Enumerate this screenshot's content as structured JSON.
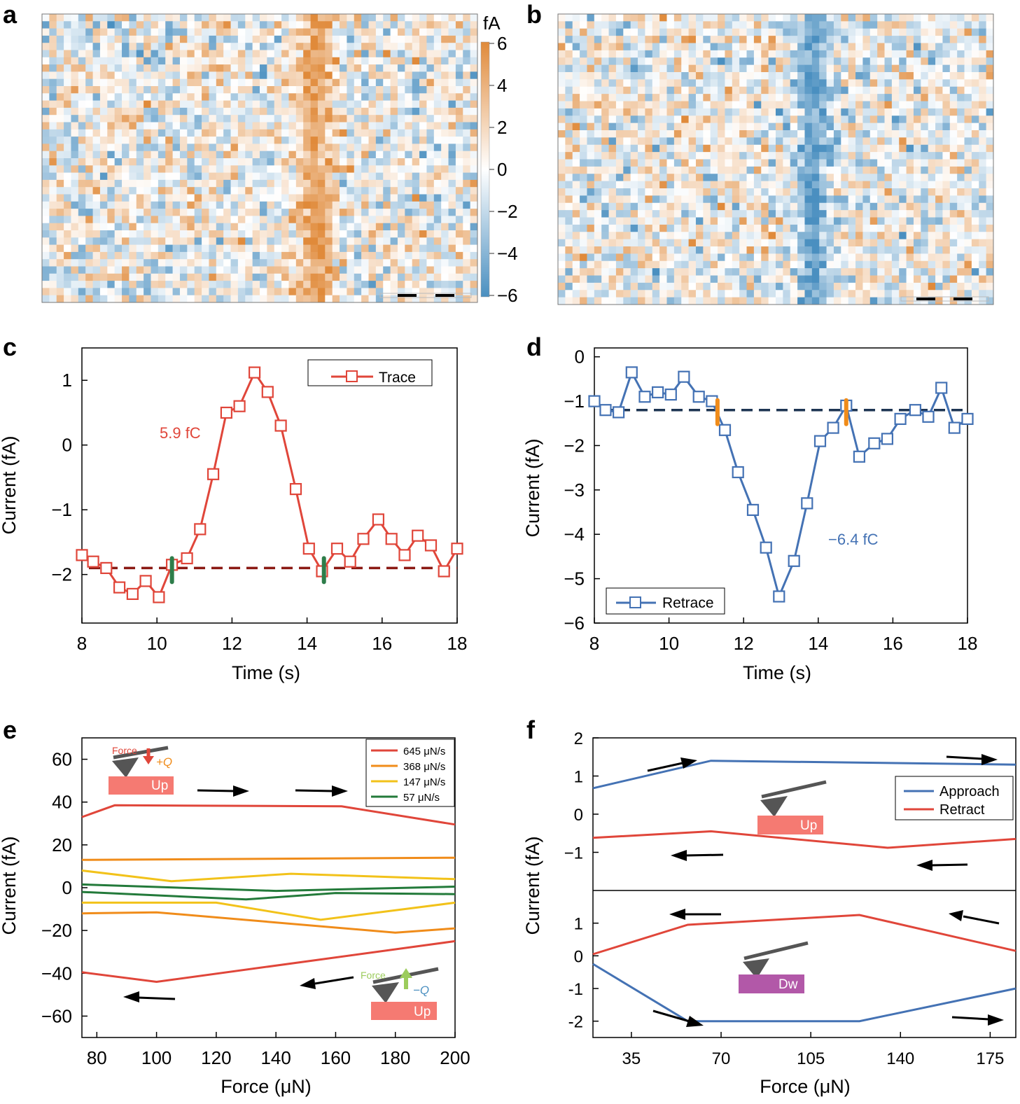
{
  "panel_letters": [
    "a",
    "b",
    "c",
    "d",
    "e",
    "f"
  ],
  "colorbar": {
    "unit": "fA",
    "ticks": [
      "6",
      "4",
      "2",
      "0",
      "−2",
      "−4",
      "−6"
    ],
    "range": [
      -6,
      6
    ],
    "positive_color": "#e08a3a",
    "negative_color": "#4a8fc0"
  },
  "chart_data": [
    {
      "id": "a",
      "type": "heatmap",
      "unit": "fA",
      "range": [
        -6,
        6
      ],
      "description_band": "positive band centered near column 0.62 of the map"
    },
    {
      "id": "b",
      "type": "heatmap",
      "unit": "fA",
      "range": [
        -6,
        6
      ],
      "description_band": "negative band centered near column 0.58 of the map"
    },
    {
      "id": "c",
      "type": "line",
      "color": "#e0463a",
      "xlabel": "Time (s)",
      "ylabel": "Current (fA)",
      "xlim": [
        8,
        18
      ],
      "ylim": [
        -2.75,
        1.5
      ],
      "xticks": [
        8,
        10,
        12,
        14,
        16,
        18
      ],
      "yticks": [
        1,
        0,
        -1,
        -2
      ],
      "ytick_labels": [
        "1",
        "0",
        "−1",
        "−2"
      ],
      "legend": "Trace",
      "annotation": "5.9 fC",
      "baseline": -1.9,
      "baseline_color": "#8b1a14",
      "markers_at": [
        10.4,
        14.45
      ],
      "marker_color": "#2e7d4a",
      "series": [
        {
          "name": "Trace",
          "x": [
            8.0,
            8.3,
            8.65,
            9.0,
            9.35,
            9.7,
            10.05,
            10.4,
            10.8,
            11.15,
            11.5,
            11.85,
            12.2,
            12.6,
            12.95,
            13.3,
            13.7,
            14.05,
            14.4,
            14.8,
            15.15,
            15.5,
            15.9,
            16.25,
            16.6,
            16.95,
            17.3,
            17.65,
            18.0
          ],
          "y": [
            -1.7,
            -1.8,
            -1.9,
            -2.2,
            -2.3,
            -2.1,
            -2.35,
            -1.85,
            -1.75,
            -1.3,
            -0.45,
            0.5,
            0.6,
            1.12,
            0.82,
            0.3,
            -0.68,
            -1.6,
            -1.95,
            -1.6,
            -1.8,
            -1.45,
            -1.15,
            -1.45,
            -1.7,
            -1.4,
            -1.55,
            -1.95,
            -1.6
          ]
        }
      ]
    },
    {
      "id": "d",
      "type": "line",
      "color": "#4472b4",
      "xlabel": "Time (s)",
      "ylabel": "Current (fA)",
      "xlim": [
        8,
        18
      ],
      "ylim": [
        -6,
        0.2
      ],
      "xticks": [
        8,
        10,
        12,
        14,
        16,
        18
      ],
      "yticks": [
        0,
        -1,
        -2,
        -3,
        -4,
        -5,
        -6
      ],
      "ytick_labels": [
        "0",
        "−1",
        "−2",
        "−3",
        "−4",
        "−5",
        "−6"
      ],
      "legend": "Retrace",
      "annotation": "−6.4 fC",
      "baseline": -1.2,
      "baseline_color": "#1e3553",
      "markers_at": [
        11.3,
        14.75
      ],
      "marker_color": "#f08c1a",
      "series": [
        {
          "name": "Retrace",
          "x": [
            8.0,
            8.3,
            8.65,
            9.0,
            9.35,
            9.7,
            10.05,
            10.4,
            10.8,
            11.15,
            11.5,
            11.85,
            12.25,
            12.6,
            12.95,
            13.35,
            13.7,
            14.05,
            14.4,
            14.75,
            15.1,
            15.5,
            15.85,
            16.2,
            16.6,
            16.95,
            17.3,
            17.65,
            18.0
          ],
          "y": [
            -1.0,
            -1.2,
            -1.25,
            -0.35,
            -0.9,
            -0.8,
            -0.85,
            -0.45,
            -0.9,
            -1.0,
            -1.65,
            -2.6,
            -3.45,
            -4.3,
            -5.4,
            -4.6,
            -3.3,
            -1.9,
            -1.6,
            -1.1,
            -2.25,
            -1.95,
            -1.85,
            -1.4,
            -1.2,
            -1.35,
            -0.7,
            -1.6,
            -1.4
          ]
        }
      ]
    },
    {
      "id": "e",
      "type": "line",
      "xlabel": "Force (μN)",
      "ylabel": "Current (fA)",
      "xlim": [
        75,
        200
      ],
      "ylim": [
        -70,
        70
      ],
      "xticks": [
        80,
        100,
        120,
        140,
        160,
        180,
        200
      ],
      "yticks": [
        60,
        40,
        20,
        0,
        -20,
        -40,
        -60
      ],
      "ytick_labels": [
        "60",
        "40",
        "20",
        "0",
        "−20",
        "−40",
        "−60"
      ],
      "legend": [
        "645 μN/s",
        "368 μN/s",
        "147 μN/s",
        "57 μN/s"
      ],
      "series": [
        {
          "name": "645 μN/s",
          "color": "#e0463a",
          "x": [
            75,
            86,
            162,
            200
          ],
          "y": [
            33,
            38.5,
            38,
            29.5
          ]
        },
        {
          "name": "645 μN/s",
          "color": "#e0463a",
          "x": [
            75,
            100,
            200
          ],
          "y": [
            -39.5,
            -44,
            -25
          ]
        },
        {
          "name": "368 μN/s",
          "color": "#f08c1a",
          "x": [
            75,
            200
          ],
          "y": [
            13,
            14
          ]
        },
        {
          "name": "368 μN/s",
          "color": "#f08c1a",
          "x": [
            75,
            100,
            180,
            200
          ],
          "y": [
            -12,
            -11.5,
            -21,
            -19
          ]
        },
        {
          "name": "147 μN/s",
          "color": "#f2c21a",
          "x": [
            75,
            105,
            145,
            200
          ],
          "y": [
            8,
            3,
            6.5,
            4
          ]
        },
        {
          "name": "147 μN/s",
          "color": "#f2c21a",
          "x": [
            75,
            120,
            155,
            200
          ],
          "y": [
            -7,
            -7,
            -15,
            -7
          ]
        },
        {
          "name": "57 μN/s",
          "color": "#237a3a",
          "x": [
            75,
            140,
            200
          ],
          "y": [
            1.5,
            -1.5,
            0.5
          ]
        },
        {
          "name": "57 μN/s",
          "color": "#237a3a",
          "x": [
            75,
            130,
            160,
            200
          ],
          "y": [
            -2,
            -5.5,
            -2.5,
            -3
          ]
        }
      ],
      "insets": {
        "top_label": "Force",
        "top_charge": "+Q",
        "top_box": "Up",
        "bottom_label": "Force",
        "bottom_charge": "−Q",
        "bottom_box": "Up"
      }
    },
    {
      "id": "f",
      "type": "line",
      "xlabel": "Force (μN)",
      "ylabel": "Current (fA)",
      "xlim": [
        20,
        185
      ],
      "xticks": [
        35,
        70,
        105,
        140,
        175
      ],
      "legend": [
        "Approach",
        "Retract"
      ],
      "top": {
        "ylim": [
          -2,
          2
        ],
        "yticks": [
          2,
          1,
          0,
          -1
        ],
        "ytick_labels": [
          "2",
          "1",
          "0",
          "−1"
        ],
        "box": "Up",
        "series": [
          {
            "name": "Approach",
            "color": "#4472b4",
            "x": [
              20,
              66,
              185
            ],
            "y": [
              0.68,
              1.4,
              1.3
            ]
          },
          {
            "name": "Retract",
            "color": "#e0463a",
            "x": [
              20,
              66,
              135,
              185
            ],
            "y": [
              -0.62,
              -0.45,
              -0.88,
              -0.65
            ]
          }
        ]
      },
      "bottom": {
        "ylim": [
          -2.5,
          2
        ],
        "yticks": [
          1,
          0,
          -1,
          -2
        ],
        "ytick_labels": [
          "1",
          "0",
          "-1",
          "-2"
        ],
        "box": "Dw",
        "series": [
          {
            "name": "Retract",
            "color": "#e0463a",
            "x": [
              20,
              57,
              124,
              185
            ],
            "y": [
              0.05,
              0.95,
              1.25,
              0.15
            ]
          },
          {
            "name": "Approach",
            "color": "#4472b4",
            "x": [
              20,
              57,
              124,
              185
            ],
            "y": [
              -0.25,
              -2.0,
              -2.0,
              -1.0
            ]
          }
        ]
      }
    }
  ]
}
